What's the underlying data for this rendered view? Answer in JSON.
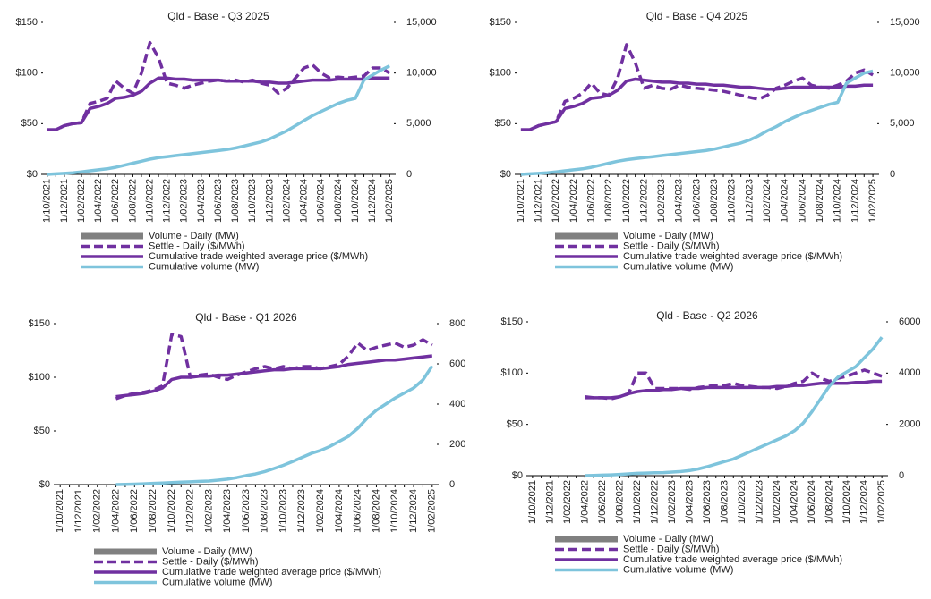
{
  "chart_data": [
    {
      "type": "line",
      "title": "Qld - Base - Q3 2025",
      "categories": [
        "1/10/2021",
        null,
        "1/12/2021",
        null,
        "1/02/2022",
        null,
        "1/04/2022",
        null,
        "1/06/2022",
        null,
        "1/08/2022",
        null,
        "1/10/2022",
        null,
        "1/12/2022",
        null,
        "1/02/2023",
        null,
        "1/04/2023",
        null,
        "1/06/2023",
        null,
        "1/08/2023",
        null,
        "1/10/2023",
        null,
        "1/12/2023",
        null,
        "1/02/2024",
        null,
        "1/04/2024",
        null,
        "1/06/2024",
        null,
        "1/08/2024",
        null,
        "1/10/2024",
        null,
        "1/12/2024",
        null,
        "1/02/2025"
      ],
      "ylim": [
        0,
        150
      ],
      "yticks": [
        {
          "value": 0,
          "label": "$0"
        },
        {
          "value": 50,
          "label": "$50"
        },
        {
          "value": 100,
          "label": "$100"
        },
        {
          "value": 150,
          "label": "$150"
        }
      ],
      "y2lim": [
        0,
        15000
      ],
      "y2ticks": [
        0,
        {
          "value": 5000,
          "label": "5,000"
        },
        {
          "value": 10000,
          "label": "10,000"
        },
        {
          "value": 15000,
          "label": "15,000"
        }
      ],
      "series": [
        {
          "name": "Volume - Daily (MW)",
          "color": "#808080",
          "style": "bar",
          "axis": "y2",
          "values": [
            null,
            null,
            null,
            null,
            null,
            null,
            null,
            null,
            null,
            null,
            null,
            null,
            null,
            null,
            null,
            null,
            null,
            null,
            null,
            null,
            null,
            null,
            null,
            null,
            null,
            null,
            null,
            null,
            null,
            null,
            null,
            null,
            null,
            null,
            null,
            null,
            null,
            null,
            null,
            null,
            null
          ]
        },
        {
          "name": "Settle - Daily ($/MWh)",
          "color": "#7030a0",
          "style": "dashed",
          "values": [
            44,
            44,
            48,
            50,
            51,
            70,
            72,
            75,
            92,
            85,
            80,
            100,
            130,
            115,
            90,
            88,
            85,
            88,
            90,
            92,
            93,
            92,
            93,
            91,
            93,
            90,
            88,
            80,
            85,
            95,
            105,
            108,
            100,
            95,
            96,
            95,
            96,
            97,
            105,
            105,
            100
          ]
        },
        {
          "name": "Cumulative trade weighted average price ($/MWh)",
          "color": "#7030a0",
          "style": "solid",
          "values": [
            44,
            44,
            48,
            50,
            51,
            65,
            67,
            70,
            75,
            76,
            78,
            82,
            90,
            95,
            95,
            94,
            94,
            93,
            93,
            93,
            93,
            92,
            92,
            92,
            92,
            91,
            91,
            90,
            90,
            91,
            92,
            93,
            93,
            93,
            94,
            94,
            94,
            94,
            95,
            95,
            95
          ]
        },
        {
          "name": "Cumulative volume (MW)",
          "color": "#7ec4dc",
          "style": "solid",
          "axis": "y2",
          "values": [
            0,
            50,
            100,
            150,
            250,
            350,
            450,
            550,
            700,
            900,
            1100,
            1300,
            1500,
            1650,
            1750,
            1850,
            1950,
            2050,
            2150,
            2250,
            2350,
            2450,
            2600,
            2800,
            3000,
            3200,
            3500,
            3900,
            4300,
            4800,
            5300,
            5800,
            6200,
            6600,
            7000,
            7300,
            7500,
            9300,
            9800,
            10300,
            10700
          ]
        }
      ]
    },
    {
      "type": "line",
      "title": "Qld - Base - Q4 2025",
      "categories": [
        "1/10/2021",
        null,
        "1/12/2021",
        null,
        "1/02/2022",
        null,
        "1/04/2022",
        null,
        "1/06/2022",
        null,
        "1/08/2022",
        null,
        "1/10/2022",
        null,
        "1/12/2022",
        null,
        "1/02/2023",
        null,
        "1/04/2023",
        null,
        "1/06/2023",
        null,
        "1/08/2023",
        null,
        "1/10/2023",
        null,
        "1/12/2023",
        null,
        "1/02/2024",
        null,
        "1/04/2024",
        null,
        "1/06/2024",
        null,
        "1/08/2024",
        null,
        "1/10/2024",
        null,
        "1/12/2024",
        null,
        "1/02/2025"
      ],
      "ylim": [
        0,
        150
      ],
      "yticks": [
        {
          "value": 0,
          "label": "$0"
        },
        {
          "value": 50,
          "label": "$50"
        },
        {
          "value": 100,
          "label": "$100"
        },
        {
          "value": 150,
          "label": "$150"
        }
      ],
      "y2lim": [
        0,
        15000
      ],
      "y2ticks": [
        0,
        {
          "value": 5000,
          "label": "5,000"
        },
        {
          "value": 10000,
          "label": "10,000"
        },
        {
          "value": 15000,
          "label": "15,000"
        }
      ],
      "series": [
        {
          "name": "Volume - Daily (MW)",
          "color": "#808080",
          "style": "bar",
          "axis": "y2",
          "values": [
            null,
            null,
            null,
            null,
            null,
            null,
            null,
            null,
            null,
            null,
            null,
            null,
            null,
            null,
            null,
            null,
            null,
            null,
            null,
            null,
            null,
            null,
            null,
            null,
            null,
            null,
            null,
            null,
            null,
            null,
            null,
            null,
            null,
            null,
            null,
            null,
            null,
            null,
            null,
            null,
            null
          ]
        },
        {
          "name": "Settle - Daily ($/MWh)",
          "color": "#7030a0",
          "style": "dashed",
          "values": [
            44,
            44,
            48,
            50,
            52,
            72,
            75,
            80,
            90,
            80,
            78,
            95,
            128,
            110,
            85,
            88,
            85,
            84,
            88,
            86,
            85,
            84,
            83,
            82,
            80,
            78,
            76,
            74,
            78,
            85,
            88,
            92,
            95,
            88,
            86,
            85,
            88,
            92,
            100,
            103,
            98
          ]
        },
        {
          "name": "Cumulative trade weighted average price ($/MWh)",
          "color": "#7030a0",
          "style": "solid",
          "values": [
            44,
            44,
            48,
            50,
            52,
            65,
            67,
            70,
            75,
            76,
            78,
            83,
            92,
            94,
            93,
            92,
            91,
            91,
            90,
            90,
            89,
            89,
            88,
            88,
            87,
            86,
            86,
            85,
            84,
            84,
            85,
            86,
            86,
            86,
            86,
            86,
            86,
            87,
            87,
            88,
            88
          ]
        },
        {
          "name": "Cumulative volume (MW)",
          "color": "#7ec4dc",
          "style": "solid",
          "axis": "y2",
          "values": [
            0,
            50,
            100,
            150,
            250,
            350,
            450,
            550,
            700,
            900,
            1100,
            1300,
            1450,
            1550,
            1650,
            1750,
            1850,
            1950,
            2050,
            2150,
            2250,
            2350,
            2500,
            2700,
            2900,
            3100,
            3400,
            3800,
            4300,
            4700,
            5200,
            5600,
            6000,
            6300,
            6600,
            6900,
            7100,
            9000,
            9500,
            10000,
            10200
          ]
        }
      ]
    },
    {
      "type": "line",
      "title": "Qld - Base - Q1 2026",
      "categories": [
        "1/10/2021",
        null,
        "1/12/2021",
        null,
        "1/02/2022",
        null,
        "1/04/2022",
        null,
        "1/06/2022",
        null,
        "1/08/2022",
        null,
        "1/10/2022",
        null,
        "1/12/2022",
        null,
        "1/02/2023",
        null,
        "1/04/2023",
        null,
        "1/06/2023",
        null,
        "1/08/2023",
        null,
        "1/10/2023",
        null,
        "1/12/2023",
        null,
        "1/02/2024",
        null,
        "1/04/2024",
        null,
        "1/06/2024",
        null,
        "1/08/2024",
        null,
        "1/10/2024",
        null,
        "1/12/2024",
        null,
        "1/02/2025"
      ],
      "ylim": [
        0,
        150
      ],
      "yticks": [
        {
          "value": 0,
          "label": "$0"
        },
        {
          "value": 50,
          "label": "$50"
        },
        {
          "value": 100,
          "label": "$100"
        },
        {
          "value": 150,
          "label": "$150"
        }
      ],
      "y2lim": [
        0,
        800
      ],
      "y2ticks": [
        0,
        200,
        400,
        600,
        800
      ],
      "series": [
        {
          "name": "Volume - Daily (MW)",
          "color": "#808080",
          "style": "bar",
          "axis": "y2",
          "values": [
            null,
            null,
            null,
            null,
            null,
            null,
            null,
            null,
            null,
            null,
            null,
            null,
            null,
            null,
            null,
            null,
            null,
            null,
            null,
            null,
            null,
            null,
            null,
            null,
            null,
            null,
            null,
            null,
            null,
            null,
            null,
            null,
            null,
            null,
            null,
            null,
            null,
            null,
            null,
            null,
            null
          ]
        },
        {
          "name": "Settle - Daily ($/MWh)",
          "color": "#7030a0",
          "style": "dashed",
          "values": [
            null,
            null,
            null,
            null,
            null,
            null,
            80,
            83,
            85,
            86,
            88,
            92,
            140,
            138,
            100,
            102,
            103,
            100,
            98,
            102,
            105,
            108,
            110,
            108,
            110,
            108,
            110,
            110,
            108,
            110,
            112,
            120,
            132,
            125,
            128,
            130,
            132,
            128,
            130,
            135,
            130
          ]
        },
        {
          "name": "Cumulative trade weighted average price ($/MWh)",
          "color": "#7030a0",
          "style": "solid",
          "values": [
            null,
            null,
            null,
            null,
            null,
            null,
            82,
            83,
            84,
            85,
            87,
            90,
            98,
            100,
            100,
            101,
            101,
            102,
            102,
            103,
            104,
            105,
            106,
            107,
            107,
            108,
            108,
            108,
            108,
            109,
            110,
            112,
            113,
            114,
            115,
            116,
            116,
            117,
            118,
            119,
            120
          ]
        },
        {
          "name": "Cumulative volume (MW)",
          "color": "#7ec4dc",
          "style": "solid",
          "axis": "y2",
          "values": [
            null,
            null,
            null,
            null,
            null,
            null,
            0,
            1,
            2,
            4,
            6,
            8,
            10,
            12,
            14,
            16,
            18,
            22,
            27,
            35,
            45,
            53,
            65,
            80,
            96,
            115,
            135,
            155,
            170,
            190,
            215,
            240,
            280,
            330,
            370,
            400,
            430,
            455,
            480,
            520,
            590
          ]
        }
      ]
    },
    {
      "type": "line",
      "title": "Qld - Base - Q2 2026",
      "categories": [
        "1/10/2021",
        null,
        "1/12/2021",
        null,
        "1/02/2022",
        null,
        "1/04/2022",
        null,
        "1/06/2022",
        null,
        "1/08/2022",
        null,
        "1/10/2022",
        null,
        "1/12/2022",
        null,
        "1/02/2023",
        null,
        "1/04/2023",
        null,
        "1/06/2023",
        null,
        "1/08/2023",
        null,
        "1/10/2023",
        null,
        "1/12/2023",
        null,
        "1/02/2024",
        null,
        "1/04/2024",
        null,
        "1/06/2024",
        null,
        "1/08/2024",
        null,
        "1/10/2024",
        null,
        "1/12/2024",
        null,
        "1/02/2025"
      ],
      "ylim": [
        0,
        150
      ],
      "yticks": [
        {
          "value": 0,
          "label": "$0"
        },
        {
          "value": 50,
          "label": "$50"
        },
        {
          "value": 100,
          "label": "$100"
        },
        {
          "value": 150,
          "label": "$150"
        }
      ],
      "y2lim": [
        0,
        6000
      ],
      "y2ticks": [
        0,
        2000,
        4000,
        6000
      ],
      "series": [
        {
          "name": "Volume - Daily (MW)",
          "color": "#808080",
          "style": "bar",
          "axis": "y2",
          "values": [
            null,
            null,
            null,
            null,
            null,
            null,
            null,
            null,
            null,
            null,
            null,
            null,
            null,
            null,
            null,
            null,
            null,
            null,
            null,
            null,
            null,
            null,
            null,
            null,
            null,
            null,
            null,
            null,
            null,
            null,
            null,
            null,
            null,
            null,
            null,
            null,
            null,
            null,
            null,
            null,
            null
          ]
        },
        {
          "name": "Settle - Daily ($/MWh)",
          "color": "#7030a0",
          "style": "dashed",
          "values": [
            null,
            null,
            null,
            null,
            null,
            null,
            77,
            76,
            76,
            75,
            77,
            80,
            100,
            100,
            85,
            85,
            85,
            85,
            84,
            86,
            87,
            88,
            88,
            90,
            88,
            87,
            86,
            86,
            85,
            87,
            90,
            92,
            100,
            95,
            92,
            95,
            97,
            100,
            103,
            100,
            97
          ]
        },
        {
          "name": "Cumulative trade weighted average price ($/MWh)",
          "color": "#7030a0",
          "style": "solid",
          "values": [
            null,
            null,
            null,
            null,
            null,
            null,
            76,
            76,
            76,
            76,
            77,
            80,
            82,
            83,
            83,
            84,
            84,
            85,
            85,
            85,
            86,
            86,
            86,
            86,
            86,
            86,
            86,
            86,
            87,
            87,
            88,
            88,
            89,
            90,
            90,
            90,
            90,
            91,
            91,
            92,
            92
          ]
        },
        {
          "name": "Cumulative volume (MW)",
          "color": "#7ec4dc",
          "style": "solid",
          "axis": "y2",
          "values": [
            null,
            null,
            null,
            null,
            null,
            null,
            0,
            10,
            20,
            30,
            50,
            70,
            90,
            100,
            110,
            120,
            140,
            160,
            200,
            260,
            350,
            450,
            550,
            650,
            800,
            950,
            1100,
            1250,
            1400,
            1550,
            1750,
            2050,
            2500,
            3000,
            3500,
            3850,
            4050,
            4250,
            4600,
            4950,
            5400
          ]
        }
      ]
    }
  ]
}
